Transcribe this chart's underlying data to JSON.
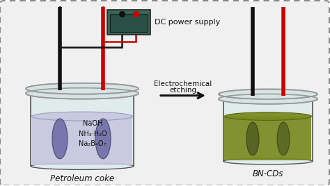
{
  "bg_color": "#f0f0f0",
  "border_color": "#888888",
  "title_dc": "DC power supply",
  "label_left": "Petroleum coke",
  "label_right": "BN-CDs",
  "arrow_label_line1": "Electrochemical",
  "arrow_label_line2": "etching",
  "chemicals": [
    "NaOH",
    "NH₃·H₂O",
    "Na₂B₄O₇"
  ],
  "beaker_left_liquid": "#c8c8e0",
  "beaker_right_liquid": "#7a8a20",
  "beaker_body": "#e0ecec",
  "lid_color": "#d8e4e4",
  "lid_edge": "#999999",
  "electrode_black": "#111111",
  "electrode_red": "#cc0000",
  "wire_black": "#111111",
  "wire_red": "#cc0000",
  "psu_body": "#3a6655",
  "carbon_color": "#7070aa",
  "arrow_color": "#111111",
  "beaker_edge": "#555555",
  "liq_edge_left": "#9999bb",
  "liq_edge_right": "#556610"
}
